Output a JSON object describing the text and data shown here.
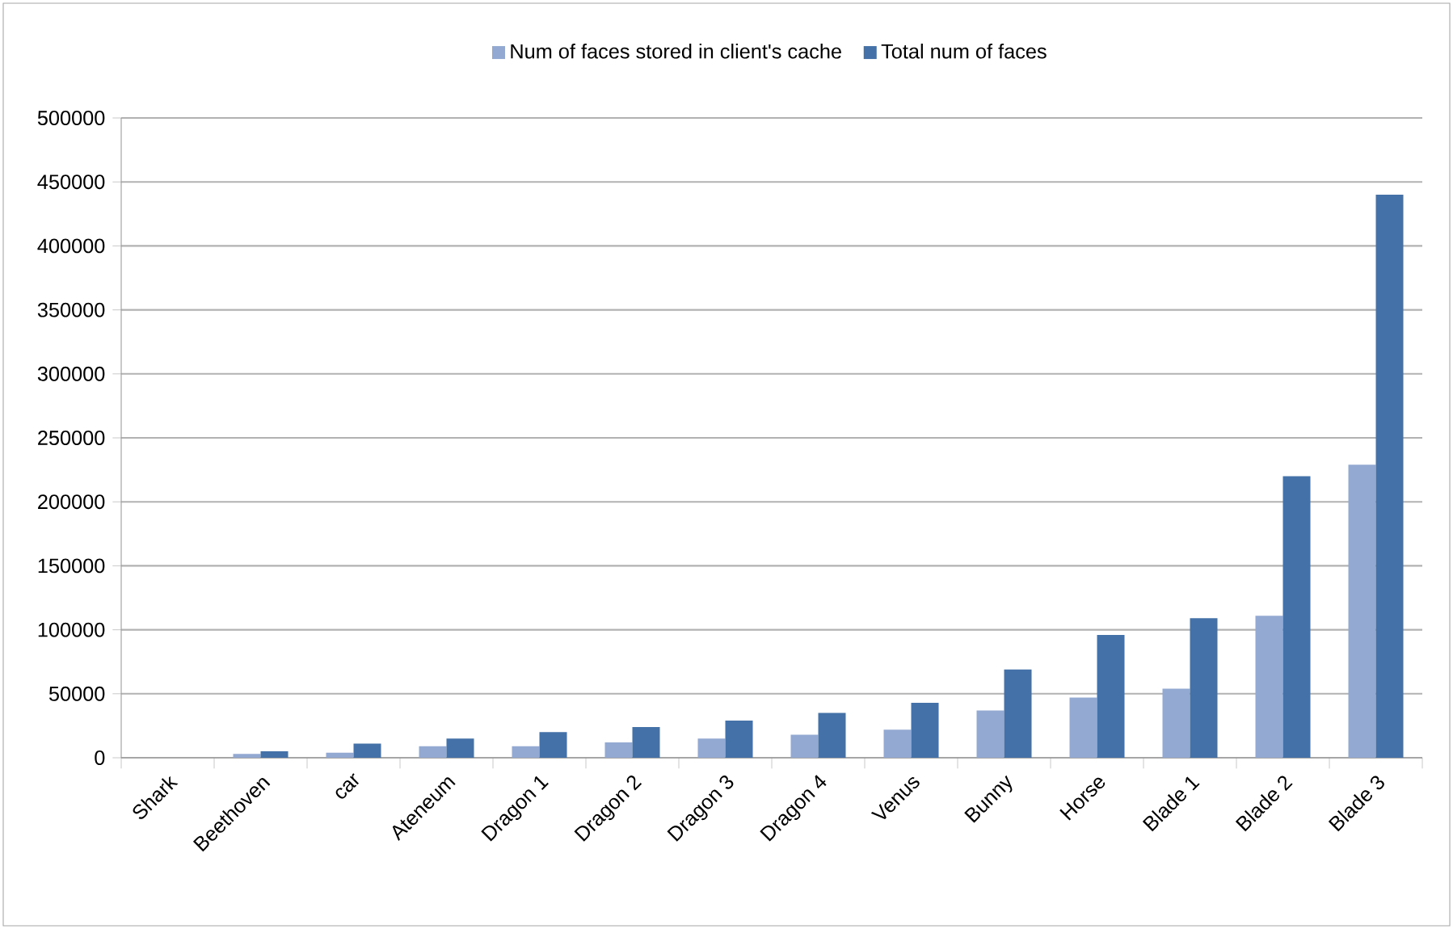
{
  "chart_data": {
    "type": "bar",
    "categories": [
      "Shark",
      "Beethoven",
      "car",
      "Ateneum",
      "Dragon 1",
      "Dragon 2",
      "Dragon 3",
      "Dragon 4",
      "Venus",
      "Bunny",
      "Horse",
      "Blade 1",
      "Blade 2",
      "Blade 3"
    ],
    "series": [
      {
        "name": "Num of faces stored in client's cache",
        "color": "#93a9d1",
        "values": [
          null,
          3000,
          4000,
          9000,
          9000,
          12000,
          15000,
          18000,
          22000,
          37000,
          47000,
          54000,
          111000,
          229000
        ]
      },
      {
        "name": "Total num of faces",
        "color": "#4472a8",
        "values": [
          null,
          5000,
          11000,
          15000,
          20000,
          24000,
          29000,
          35000,
          43000,
          69000,
          96000,
          109000,
          220000,
          440000
        ]
      }
    ],
    "ylim": [
      0,
      500000
    ],
    "yticks": [
      0,
      50000,
      100000,
      150000,
      200000,
      250000,
      300000,
      350000,
      400000,
      450000,
      500000
    ],
    "grid": "y",
    "legend": "top"
  }
}
